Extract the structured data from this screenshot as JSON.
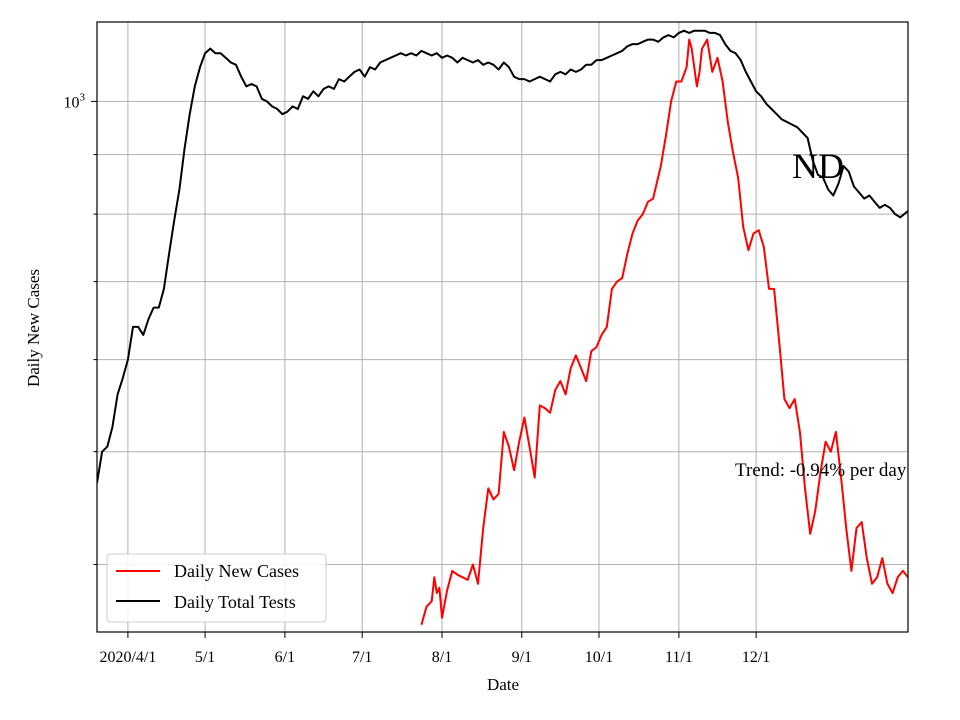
{
  "chart_data": {
    "type": "line",
    "title": "",
    "state_label": "ND",
    "xlabel": "Date",
    "ylabel": "Daily New Cases",
    "y_scale": "log",
    "ylim": [
      350,
      1170
    ],
    "y_tick_label_major": {
      "value": 1000,
      "base": "10",
      "exponent": "3"
    },
    "y_minor_ticks": [
      400,
      500,
      600,
      700,
      800,
      900
    ],
    "grid": true,
    "legend_position": "lower-left",
    "x_ticks": [
      {
        "date": "2020-04-01",
        "label": "2020/4/1"
      },
      {
        "date": "2020-05-01",
        "label": "5/1"
      },
      {
        "date": "2020-06-01",
        "label": "6/1"
      },
      {
        "date": "2020-07-01",
        "label": "7/1"
      },
      {
        "date": "2020-08-01",
        "label": "8/1"
      },
      {
        "date": "2020-09-01",
        "label": "9/1"
      },
      {
        "date": "2020-10-01",
        "label": "10/1"
      },
      {
        "date": "2020-11-01",
        "label": "11/1"
      },
      {
        "date": "2020-12-01",
        "label": "12/1"
      }
    ],
    "xlim": [
      "2020-03-20",
      "2021-01-29"
    ],
    "trend_annotation": "Trend: -0.94% per day",
    "series": [
      {
        "name": "Daily New Cases",
        "color": "#ff0000",
        "points": [
          [
            "2020-07-24",
            355
          ],
          [
            "2020-07-26",
            368
          ],
          [
            "2020-07-28",
            372
          ],
          [
            "2020-07-29",
            390
          ],
          [
            "2020-07-30",
            378
          ],
          [
            "2020-07-31",
            382
          ],
          [
            "2020-08-01",
            360
          ],
          [
            "2020-08-03",
            380
          ],
          [
            "2020-08-05",
            395
          ],
          [
            "2020-08-07",
            392
          ],
          [
            "2020-08-09",
            390
          ],
          [
            "2020-08-11",
            388
          ],
          [
            "2020-08-13",
            400
          ],
          [
            "2020-08-15",
            385
          ],
          [
            "2020-08-17",
            430
          ],
          [
            "2020-08-19",
            465
          ],
          [
            "2020-08-21",
            455
          ],
          [
            "2020-08-23",
            460
          ],
          [
            "2020-08-25",
            520
          ],
          [
            "2020-08-27",
            505
          ],
          [
            "2020-08-29",
            482
          ],
          [
            "2020-08-31",
            510
          ],
          [
            "2020-09-02",
            535
          ],
          [
            "2020-09-04",
            505
          ],
          [
            "2020-09-06",
            475
          ],
          [
            "2020-09-08",
            548
          ],
          [
            "2020-09-10",
            545
          ],
          [
            "2020-09-12",
            540
          ],
          [
            "2020-09-14",
            565
          ],
          [
            "2020-09-16",
            575
          ],
          [
            "2020-09-18",
            560
          ],
          [
            "2020-09-20",
            590
          ],
          [
            "2020-09-22",
            605
          ],
          [
            "2020-09-24",
            590
          ],
          [
            "2020-09-26",
            575
          ],
          [
            "2020-09-28",
            610
          ],
          [
            "2020-09-30",
            615
          ],
          [
            "2020-10-02",
            630
          ],
          [
            "2020-10-04",
            640
          ],
          [
            "2020-10-06",
            690
          ],
          [
            "2020-10-08",
            700
          ],
          [
            "2020-10-10",
            705
          ],
          [
            "2020-10-12",
            740
          ],
          [
            "2020-10-14",
            770
          ],
          [
            "2020-10-16",
            790
          ],
          [
            "2020-10-18",
            800
          ],
          [
            "2020-10-20",
            820
          ],
          [
            "2020-10-22",
            825
          ],
          [
            "2020-10-25",
            880
          ],
          [
            "2020-10-27",
            935
          ],
          [
            "2020-10-29",
            1000
          ],
          [
            "2020-10-31",
            1040
          ],
          [
            "2020-11-02",
            1040
          ],
          [
            "2020-11-04",
            1070
          ],
          [
            "2020-11-05",
            1130
          ],
          [
            "2020-11-06",
            1110
          ],
          [
            "2020-11-08",
            1030
          ],
          [
            "2020-11-09",
            1060
          ],
          [
            "2020-11-10",
            1110
          ],
          [
            "2020-11-12",
            1130
          ],
          [
            "2020-11-14",
            1060
          ],
          [
            "2020-11-16",
            1090
          ],
          [
            "2020-11-18",
            1040
          ],
          [
            "2020-11-20",
            960
          ],
          [
            "2020-11-22",
            905
          ],
          [
            "2020-11-24",
            860
          ],
          [
            "2020-11-26",
            780
          ],
          [
            "2020-11-28",
            745
          ],
          [
            "2020-11-30",
            770
          ],
          [
            "2020-12-02",
            775
          ],
          [
            "2020-12-04",
            750
          ],
          [
            "2020-12-06",
            690
          ],
          [
            "2020-12-08",
            690
          ],
          [
            "2020-12-10",
            620
          ],
          [
            "2020-12-12",
            555
          ],
          [
            "2020-12-14",
            545
          ],
          [
            "2020-12-16",
            555
          ],
          [
            "2020-12-18",
            520
          ],
          [
            "2020-12-20",
            465
          ],
          [
            "2020-12-22",
            425
          ],
          [
            "2020-12-24",
            445
          ],
          [
            "2020-12-26",
            480
          ],
          [
            "2020-12-28",
            510
          ],
          [
            "2020-12-30",
            500
          ],
          [
            "2021-01-01",
            520
          ],
          [
            "2021-01-03",
            475
          ],
          [
            "2021-01-05",
            430
          ],
          [
            "2021-01-07",
            395
          ],
          [
            "2021-01-09",
            430
          ],
          [
            "2021-01-11",
            435
          ],
          [
            "2021-01-13",
            405
          ],
          [
            "2021-01-15",
            385
          ],
          [
            "2021-01-17",
            390
          ],
          [
            "2021-01-19",
            405
          ],
          [
            "2021-01-21",
            385
          ],
          [
            "2021-01-23",
            378
          ],
          [
            "2021-01-25",
            390
          ],
          [
            "2021-01-27",
            395
          ],
          [
            "2021-01-29",
            390
          ]
        ]
      },
      {
        "name": "Daily Total Tests",
        "color": "#000000",
        "points": [
          [
            "2020-03-20",
            470
          ],
          [
            "2020-03-22",
            500
          ],
          [
            "2020-03-24",
            505
          ],
          [
            "2020-03-26",
            525
          ],
          [
            "2020-03-28",
            560
          ],
          [
            "2020-03-30",
            578
          ],
          [
            "2020-04-01",
            600
          ],
          [
            "2020-04-03",
            640
          ],
          [
            "2020-04-05",
            640
          ],
          [
            "2020-04-07",
            630
          ],
          [
            "2020-04-09",
            650
          ],
          [
            "2020-04-11",
            665
          ],
          [
            "2020-04-13",
            665
          ],
          [
            "2020-04-15",
            690
          ],
          [
            "2020-04-17",
            740
          ],
          [
            "2020-04-19",
            790
          ],
          [
            "2020-04-21",
            840
          ],
          [
            "2020-04-23",
            910
          ],
          [
            "2020-04-25",
            975
          ],
          [
            "2020-04-27",
            1030
          ],
          [
            "2020-04-29",
            1070
          ],
          [
            "2020-05-01",
            1100
          ],
          [
            "2020-05-03",
            1110
          ],
          [
            "2020-05-05",
            1100
          ],
          [
            "2020-05-07",
            1100
          ],
          [
            "2020-05-09",
            1090
          ],
          [
            "2020-05-11",
            1080
          ],
          [
            "2020-05-13",
            1075
          ],
          [
            "2020-05-15",
            1050
          ],
          [
            "2020-05-17",
            1030
          ],
          [
            "2020-05-19",
            1035
          ],
          [
            "2020-05-21",
            1030
          ],
          [
            "2020-05-23",
            1005
          ],
          [
            "2020-05-25",
            1000
          ],
          [
            "2020-05-27",
            990
          ],
          [
            "2020-05-29",
            985
          ],
          [
            "2020-05-31",
            975
          ],
          [
            "2020-06-02",
            980
          ],
          [
            "2020-06-04",
            990
          ],
          [
            "2020-06-06",
            985
          ],
          [
            "2020-06-08",
            1010
          ],
          [
            "2020-06-10",
            1005
          ],
          [
            "2020-06-12",
            1020
          ],
          [
            "2020-06-14",
            1010
          ],
          [
            "2020-06-16",
            1025
          ],
          [
            "2020-06-18",
            1030
          ],
          [
            "2020-06-20",
            1025
          ],
          [
            "2020-06-22",
            1045
          ],
          [
            "2020-06-24",
            1040
          ],
          [
            "2020-06-26",
            1050
          ],
          [
            "2020-06-28",
            1060
          ],
          [
            "2020-06-30",
            1065
          ],
          [
            "2020-07-02",
            1050
          ],
          [
            "2020-07-04",
            1070
          ],
          [
            "2020-07-06",
            1065
          ],
          [
            "2020-07-08",
            1080
          ],
          [
            "2020-07-10",
            1085
          ],
          [
            "2020-07-12",
            1090
          ],
          [
            "2020-07-14",
            1095
          ],
          [
            "2020-07-16",
            1100
          ],
          [
            "2020-07-18",
            1095
          ],
          [
            "2020-07-20",
            1100
          ],
          [
            "2020-07-22",
            1095
          ],
          [
            "2020-07-24",
            1105
          ],
          [
            "2020-07-26",
            1100
          ],
          [
            "2020-07-28",
            1095
          ],
          [
            "2020-07-30",
            1100
          ],
          [
            "2020-08-01",
            1090
          ],
          [
            "2020-08-03",
            1095
          ],
          [
            "2020-08-05",
            1090
          ],
          [
            "2020-08-07",
            1080
          ],
          [
            "2020-08-09",
            1090
          ],
          [
            "2020-08-11",
            1085
          ],
          [
            "2020-08-13",
            1080
          ],
          [
            "2020-08-15",
            1085
          ],
          [
            "2020-08-17",
            1075
          ],
          [
            "2020-08-19",
            1080
          ],
          [
            "2020-08-21",
            1075
          ],
          [
            "2020-08-23",
            1065
          ],
          [
            "2020-08-25",
            1080
          ],
          [
            "2020-08-27",
            1070
          ],
          [
            "2020-08-29",
            1050
          ],
          [
            "2020-08-31",
            1045
          ],
          [
            "2020-09-02",
            1045
          ],
          [
            "2020-09-04",
            1040
          ],
          [
            "2020-09-06",
            1045
          ],
          [
            "2020-09-08",
            1050
          ],
          [
            "2020-09-10",
            1045
          ],
          [
            "2020-09-12",
            1040
          ],
          [
            "2020-09-14",
            1055
          ],
          [
            "2020-09-16",
            1060
          ],
          [
            "2020-09-18",
            1055
          ],
          [
            "2020-09-20",
            1065
          ],
          [
            "2020-09-22",
            1060
          ],
          [
            "2020-09-24",
            1065
          ],
          [
            "2020-09-26",
            1075
          ],
          [
            "2020-09-28",
            1075
          ],
          [
            "2020-09-30",
            1085
          ],
          [
            "2020-10-02",
            1085
          ],
          [
            "2020-10-04",
            1090
          ],
          [
            "2020-10-06",
            1095
          ],
          [
            "2020-10-08",
            1100
          ],
          [
            "2020-10-10",
            1105
          ],
          [
            "2020-10-12",
            1115
          ],
          [
            "2020-10-14",
            1120
          ],
          [
            "2020-10-16",
            1120
          ],
          [
            "2020-10-18",
            1125
          ],
          [
            "2020-10-20",
            1130
          ],
          [
            "2020-10-22",
            1130
          ],
          [
            "2020-10-24",
            1125
          ],
          [
            "2020-10-26",
            1135
          ],
          [
            "2020-10-28",
            1140
          ],
          [
            "2020-10-30",
            1135
          ],
          [
            "2020-11-01",
            1145
          ],
          [
            "2020-11-03",
            1150
          ],
          [
            "2020-11-05",
            1145
          ],
          [
            "2020-11-07",
            1150
          ],
          [
            "2020-11-09",
            1150
          ],
          [
            "2020-11-11",
            1150
          ],
          [
            "2020-11-13",
            1145
          ],
          [
            "2020-11-15",
            1145
          ],
          [
            "2020-11-17",
            1140
          ],
          [
            "2020-11-19",
            1120
          ],
          [
            "2020-11-21",
            1105
          ],
          [
            "2020-11-23",
            1100
          ],
          [
            "2020-11-25",
            1085
          ],
          [
            "2020-11-27",
            1060
          ],
          [
            "2020-11-29",
            1040
          ],
          [
            "2020-12-01",
            1020
          ],
          [
            "2020-12-03",
            1010
          ],
          [
            "2020-12-05",
            995
          ],
          [
            "2020-12-07",
            985
          ],
          [
            "2020-12-09",
            975
          ],
          [
            "2020-12-11",
            965
          ],
          [
            "2020-12-13",
            960
          ],
          [
            "2020-12-15",
            955
          ],
          [
            "2020-12-17",
            950
          ],
          [
            "2020-12-19",
            940
          ],
          [
            "2020-12-21",
            930
          ],
          [
            "2020-12-23",
            890
          ],
          [
            "2020-12-25",
            865
          ],
          [
            "2020-12-27",
            860
          ],
          [
            "2020-12-29",
            840
          ],
          [
            "2020-12-31",
            830
          ],
          [
            "2021-01-02",
            850
          ],
          [
            "2021-01-04",
            880
          ],
          [
            "2021-01-06",
            870
          ],
          [
            "2021-01-08",
            845
          ],
          [
            "2021-01-10",
            835
          ],
          [
            "2021-01-12",
            825
          ],
          [
            "2021-01-14",
            830
          ],
          [
            "2021-01-16",
            820
          ],
          [
            "2021-01-18",
            810
          ],
          [
            "2021-01-20",
            815
          ],
          [
            "2021-01-22",
            810
          ],
          [
            "2021-01-24",
            800
          ],
          [
            "2021-01-26",
            795
          ],
          [
            "2021-01-29",
            805
          ]
        ]
      }
    ]
  }
}
